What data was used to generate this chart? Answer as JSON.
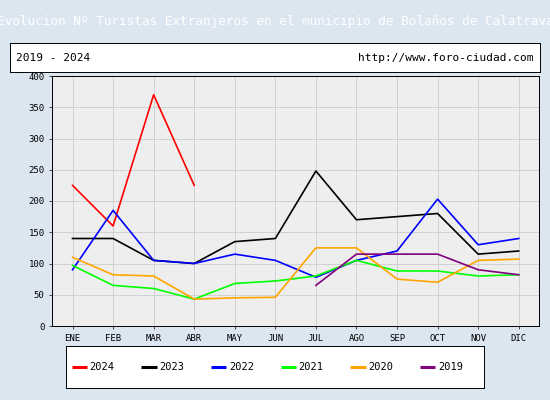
{
  "title": "Evolucion Nº Turistas Extranjeros en el municipio de Bolaños de Calatrava",
  "subtitle_left": "2019 - 2024",
  "subtitle_right": "http://www.foro-ciudad.com",
  "title_bg": "#4472c4",
  "title_color": "white",
  "months": [
    "ENE",
    "FEB",
    "MAR",
    "ABR",
    "MAY",
    "JUN",
    "JUL",
    "AGO",
    "SEP",
    "OCT",
    "NOV",
    "DIC"
  ],
  "ylim": [
    0,
    400
  ],
  "yticks": [
    0,
    50,
    100,
    150,
    200,
    250,
    300,
    350,
    400
  ],
  "series": {
    "2024": {
      "color": "red",
      "data": [
        225,
        160,
        370,
        225,
        null,
        null,
        null,
        null,
        null,
        null,
        null,
        null
      ]
    },
    "2023": {
      "color": "black",
      "data": [
        140,
        140,
        105,
        100,
        135,
        140,
        248,
        170,
        175,
        180,
        115,
        120
      ]
    },
    "2022": {
      "color": "blue",
      "data": [
        90,
        185,
        105,
        100,
        115,
        105,
        78,
        105,
        120,
        203,
        130,
        140
      ]
    },
    "2021": {
      "color": "lime",
      "data": [
        97,
        65,
        60,
        43,
        68,
        72,
        80,
        105,
        88,
        88,
        80,
        82
      ]
    },
    "2020": {
      "color": "orange",
      "data": [
        110,
        82,
        80,
        43,
        45,
        46,
        125,
        125,
        75,
        70,
        105,
        107
      ]
    },
    "2019": {
      "color": "purple",
      "data": [
        null,
        null,
        null,
        null,
        null,
        null,
        65,
        115,
        115,
        115,
        90,
        82
      ]
    }
  },
  "legend_order": [
    "2024",
    "2023",
    "2022",
    "2021",
    "2020",
    "2019"
  ],
  "grid_color": "#cccccc",
  "plot_bg": "#eeeeee",
  "outer_bg": "#dce6f1",
  "subtitle_bg": "white"
}
